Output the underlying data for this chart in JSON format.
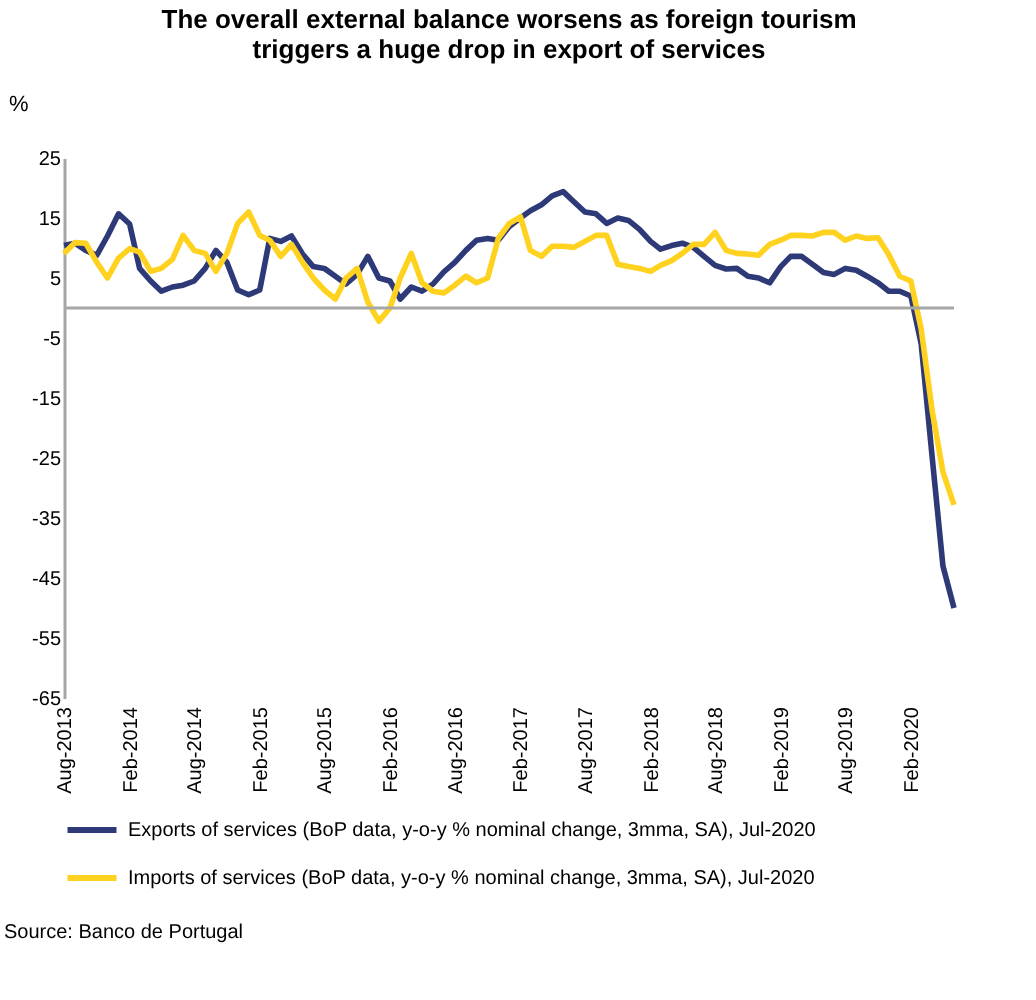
{
  "chart_data": {
    "type": "line",
    "title": "The overall external balance worsens as foreign tourism\ntriggers a huge drop in export of services",
    "ylabel": "%",
    "x": [
      "2013-08",
      "2013-09",
      "2013-10",
      "2013-11",
      "2013-12",
      "2014-01",
      "2014-02",
      "2014-03",
      "2014-04",
      "2014-05",
      "2014-06",
      "2014-07",
      "2014-08",
      "2014-09",
      "2014-10",
      "2014-11",
      "2014-12",
      "2015-01",
      "2015-02",
      "2015-03",
      "2015-04",
      "2015-05",
      "2015-06",
      "2015-07",
      "2015-08",
      "2015-09",
      "2015-10",
      "2015-11",
      "2015-12",
      "2016-01",
      "2016-02",
      "2016-03",
      "2016-04",
      "2016-05",
      "2016-06",
      "2016-07",
      "2016-08",
      "2016-09",
      "2016-10",
      "2016-11",
      "2016-12",
      "2017-01",
      "2017-02",
      "2017-03",
      "2017-04",
      "2017-05",
      "2017-06",
      "2017-07",
      "2017-08",
      "2017-09",
      "2017-10",
      "2017-11",
      "2017-12",
      "2018-01",
      "2018-02",
      "2018-03",
      "2018-04",
      "2018-05",
      "2018-06",
      "2018-07",
      "2018-08",
      "2018-09",
      "2018-10",
      "2018-11",
      "2018-12",
      "2019-01",
      "2019-02",
      "2019-03",
      "2019-04",
      "2019-05",
      "2019-06",
      "2019-07",
      "2019-08",
      "2019-09",
      "2019-10",
      "2019-11",
      "2019-12",
      "2020-01",
      "2020-02",
      "2020-03",
      "2020-04",
      "2020-05",
      "2020-06"
    ],
    "series": [
      {
        "name": "Exports of services (BoP data, y-o-y % nominal change, 3mma, SA), Jul-2020",
        "color": "#2e3a78",
        "values": [
          10.4,
          10.8,
          9.6,
          8.8,
          12,
          15.7,
          14,
          6.6,
          4.5,
          2.8,
          3.5,
          3.8,
          4.5,
          6.6,
          9.6,
          7.6,
          3,
          2.2,
          3,
          11.6,
          11.1,
          12,
          9,
          6.9,
          6.6,
          5.3,
          4,
          5.6,
          8.6,
          5,
          4.5,
          1.5,
          3.5,
          2.8,
          4,
          6,
          7.6,
          9.6,
          11.3,
          11.6,
          11.3,
          13.6,
          15,
          16.2,
          17.2,
          18.7,
          19.4,
          17.7,
          16,
          15.7,
          14.1,
          15,
          14.6,
          13.1,
          11.1,
          9.8,
          10.4,
          10.8,
          10.1,
          8.6,
          7.1,
          6.5,
          6.6,
          5.3,
          5,
          4.2,
          6.9,
          8.6,
          8.6,
          7.3,
          5.9,
          5.6,
          6.6,
          6.3,
          5.3,
          4.2,
          2.8,
          2.8,
          2,
          -6,
          -25,
          -43,
          -50
        ]
      },
      {
        "name": "Imports of services (BoP data, y-o-y % nominal change, 3mma, SA), Jul-2020",
        "color": "#ffd21f",
        "values": [
          9.1,
          10.9,
          10.8,
          7.6,
          5,
          8.3,
          9.9,
          9.3,
          6.1,
          6.6,
          8.1,
          12.1,
          9.6,
          9.1,
          6.1,
          9.1,
          14.1,
          16,
          12.1,
          11.3,
          8.6,
          10.6,
          7.6,
          5,
          3,
          1.5,
          5,
          6.6,
          1,
          -2.2,
          0,
          5,
          9.1,
          4.2,
          2.8,
          2.5,
          3.8,
          5.3,
          4.2,
          5,
          11.6,
          14.1,
          15.2,
          9.6,
          8.6,
          10.3,
          10.3,
          10.1,
          11.1,
          12.1,
          12.1,
          7.3,
          6.9,
          6.6,
          6.1,
          7.1,
          7.9,
          9.1,
          10.6,
          10.6,
          12.6,
          9.6,
          9.1,
          9,
          8.8,
          10.6,
          11.3,
          12.1,
          12.1,
          12,
          12.6,
          12.6,
          11.3,
          12,
          11.6,
          11.7,
          8.9,
          5.3,
          4.5,
          -3.5,
          -17.2,
          -27.3,
          -32.8
        ]
      }
    ],
    "xlim": [
      "2013-08",
      "2020-06"
    ],
    "xticks": [
      {
        "value": "2013-08",
        "label": "Aug-2013"
      },
      {
        "value": "2014-02",
        "label": "Feb-2014"
      },
      {
        "value": "2014-08",
        "label": "Aug-2014"
      },
      {
        "value": "2015-02",
        "label": "Feb-2015"
      },
      {
        "value": "2015-08",
        "label": "Aug-2015"
      },
      {
        "value": "2016-02",
        "label": "Feb-2016"
      },
      {
        "value": "2016-08",
        "label": "Aug-2016"
      },
      {
        "value": "2017-02",
        "label": "Feb-2017"
      },
      {
        "value": "2017-08",
        "label": "Aug-2017"
      },
      {
        "value": "2018-02",
        "label": "Feb-2018"
      },
      {
        "value": "2018-08",
        "label": "Aug-2018"
      },
      {
        "value": "2019-02",
        "label": "Feb-2019"
      },
      {
        "value": "2019-08",
        "label": "Aug-2019"
      },
      {
        "value": "2020-02",
        "label": "Feb-2020"
      }
    ],
    "ylim": [
      -65,
      25
    ],
    "yticks": [
      25,
      15,
      5,
      -5,
      -15,
      -25,
      -35,
      -45,
      -55,
      -65
    ],
    "ref_lines": [
      {
        "axis": "y",
        "value": 0,
        "color": "#a6a6a6"
      }
    ],
    "grid": false,
    "legend": "bottom",
    "marker": "none",
    "line_style": "solid",
    "annotations": [
      "Source: Banco de Portugal"
    ]
  }
}
